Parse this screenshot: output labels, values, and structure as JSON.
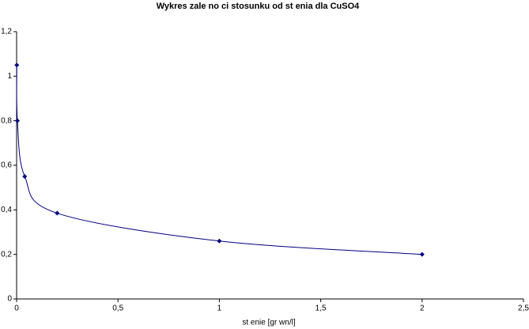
{
  "chart_data": {
    "type": "scatter",
    "title": "Wykres zale  no  ci stosunku od st    enia dla CuSO4",
    "x_label": "st    enie [gr  wn/l]",
    "series": [
      {
        "color": "#000080",
        "x": [
          0.001,
          0.004,
          0.04,
          0.2,
          1,
          2
        ],
        "values": [
          1.05,
          0.8,
          0.55,
          0.385,
          0.26,
          0.2
        ]
      }
    ],
    "xlim": [
      0,
      2.5
    ],
    "xticks": [
      0,
      {
        "value": 0.5,
        "label": "0,5"
      },
      1,
      {
        "value": 1.5,
        "label": "1,5"
      },
      2,
      {
        "value": 2.5,
        "label": "2,5"
      }
    ],
    "ylim": [
      0,
      1.2
    ],
    "yticks": [
      0,
      {
        "value": 0.2,
        "label": "0,2"
      },
      {
        "value": 0.4,
        "label": "0,4"
      },
      {
        "value": 0.6,
        "label": "0,6"
      },
      {
        "value": 0.8,
        "label": "0,8"
      },
      1,
      {
        "value": 1.2,
        "label": "1,2"
      }
    ],
    "grid": false,
    "smooth": true
  }
}
